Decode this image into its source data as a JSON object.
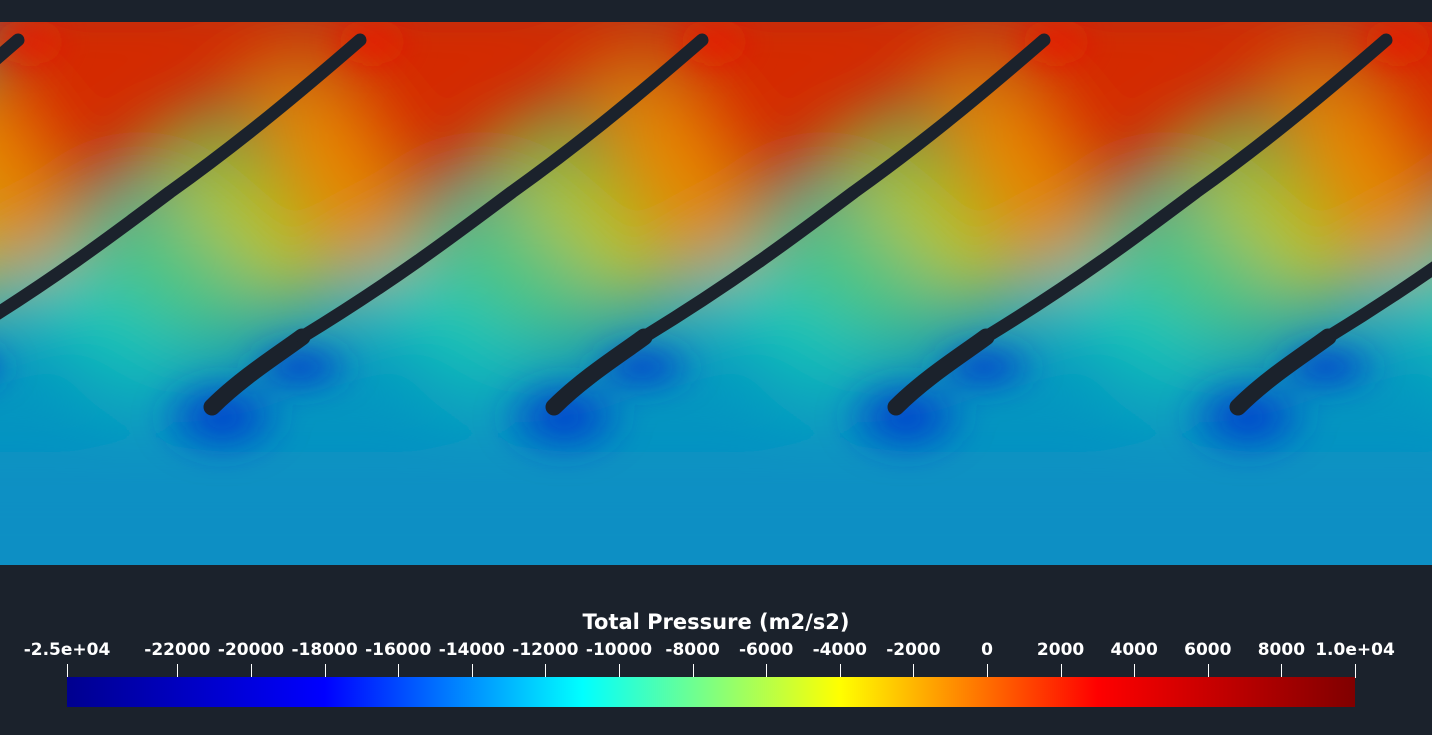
{
  "colorbar": {
    "title": "Total Pressure (m2/s2)",
    "range": [
      -25000,
      10000
    ],
    "tick_labels": [
      "-2.5e+04",
      "-22000",
      "-20000",
      "-18000",
      "-16000",
      "-14000",
      "-12000",
      "-10000",
      "-8000",
      "-6000",
      "-4000",
      "-2000",
      "0",
      "2000",
      "4000",
      "6000",
      "8000",
      "1.0e+04"
    ],
    "tick_values": [
      -25000,
      -22000,
      -20000,
      -18000,
      -16000,
      -14000,
      -12000,
      -10000,
      -8000,
      -6000,
      -4000,
      -2000,
      0,
      2000,
      4000,
      6000,
      8000,
      10000
    ],
    "colormap": [
      "#00008f",
      "#0000ff",
      "#00ffff",
      "#ffff00",
      "#ff0000",
      "#800000"
    ]
  },
  "field": {
    "quantity": "Total Pressure",
    "blade_count_visible": 5,
    "blade_color": "#1b222c"
  }
}
